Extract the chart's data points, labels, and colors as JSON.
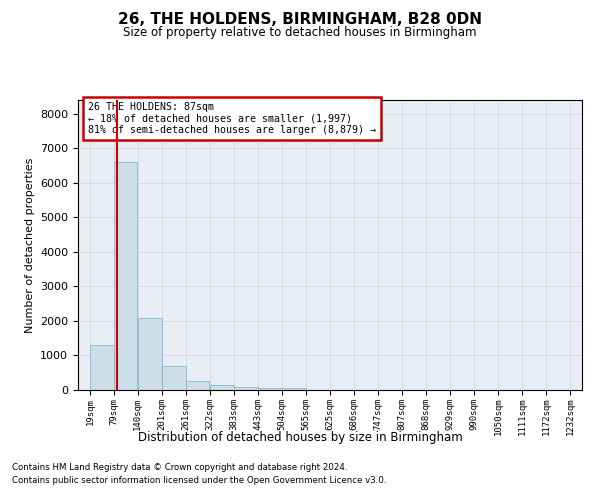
{
  "title": "26, THE HOLDENS, BIRMINGHAM, B28 0DN",
  "subtitle": "Size of property relative to detached houses in Birmingham",
  "xlabel": "Distribution of detached houses by size in Birmingham",
  "ylabel": "Number of detached properties",
  "footnote1": "Contains HM Land Registry data © Crown copyright and database right 2024.",
  "footnote2": "Contains public sector information licensed under the Open Government Licence v3.0.",
  "annotation_title": "26 THE HOLDENS: 87sqm",
  "annotation_line1": "← 18% of detached houses are smaller (1,997)",
  "annotation_line2": "81% of semi-detached houses are larger (8,879) →",
  "property_size": 87,
  "bar_color": "#ccdee8",
  "bar_edge_color": "#7ab0cc",
  "vline_color": "#cc0000",
  "annotation_box_color": "#cc0000",
  "grid_color": "#d0dce8",
  "background_color": "#e8eef4",
  "categories": [
    "19sqm",
    "79sqm",
    "140sqm",
    "201sqm",
    "261sqm",
    "322sqm",
    "383sqm",
    "443sqm",
    "504sqm",
    "565sqm",
    "625sqm",
    "686sqm",
    "747sqm",
    "807sqm",
    "868sqm",
    "929sqm",
    "990sqm",
    "1050sqm",
    "1111sqm",
    "1172sqm",
    "1232sqm"
  ],
  "bin_edges": [
    19,
    79,
    140,
    201,
    261,
    322,
    383,
    443,
    504,
    565,
    625,
    686,
    747,
    807,
    868,
    929,
    990,
    1050,
    1111,
    1172,
    1232
  ],
  "values": [
    1300,
    6600,
    2080,
    690,
    270,
    145,
    90,
    55,
    70,
    0,
    0,
    0,
    0,
    0,
    0,
    0,
    0,
    0,
    0,
    0
  ],
  "ylim": [
    0,
    8400
  ],
  "yticks": [
    0,
    1000,
    2000,
    3000,
    4000,
    5000,
    6000,
    7000,
    8000
  ]
}
